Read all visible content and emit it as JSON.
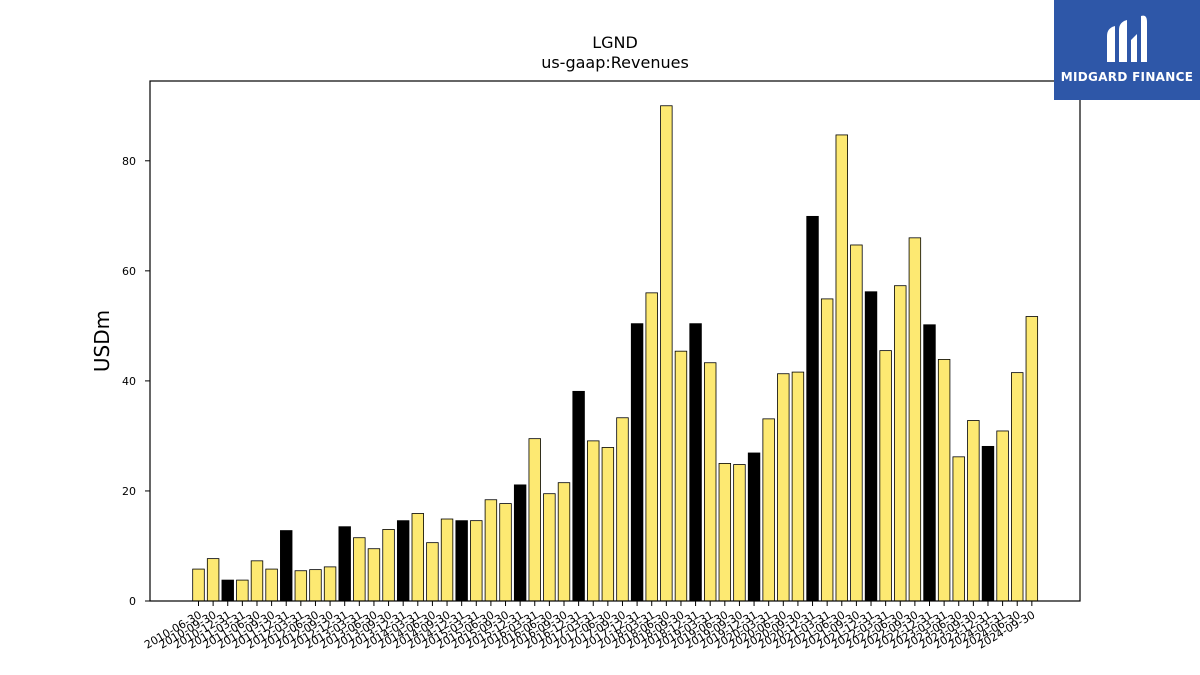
{
  "brand": {
    "name": "MIDGARD FINANCE",
    "color": "#2e57a8"
  },
  "chart_data": {
    "type": "bar",
    "title": "LGND",
    "subtitle": "us-gaap:Revenues",
    "xlabel": "",
    "ylabel": "USDm",
    "ylim": [
      0,
      94.5
    ],
    "yticks": [
      0,
      20,
      40,
      60,
      80
    ],
    "grid": false,
    "colors": {
      "quarter": "#fde972",
      "annual": "#000000",
      "edge": "#000000"
    },
    "categories": [
      "2010-06-30",
      "2010-09-30",
      "2010-12-31",
      "2011-03-31",
      "2011-06-30",
      "2011-09-30",
      "2011-12-31",
      "2012-03-31",
      "2012-06-30",
      "2012-09-30",
      "2012-12-31",
      "2013-03-31",
      "2013-06-30",
      "2013-09-30",
      "2013-12-31",
      "2014-03-31",
      "2014-06-30",
      "2014-09-30",
      "2014-12-31",
      "2015-03-31",
      "2015-06-30",
      "2015-09-30",
      "2015-12-31",
      "2016-03-31",
      "2016-06-30",
      "2016-09-30",
      "2016-12-31",
      "2017-03-31",
      "2017-06-30",
      "2017-09-30",
      "2017-12-31",
      "2018-03-31",
      "2018-06-30",
      "2018-09-30",
      "2018-12-31",
      "2019-03-31",
      "2019-06-30",
      "2019-09-30",
      "2019-12-31",
      "2020-03-31",
      "2020-06-30",
      "2020-09-30",
      "2020-12-31",
      "2021-03-31",
      "2021-06-30",
      "2021-09-30",
      "2021-12-31",
      "2022-03-31",
      "2022-06-30",
      "2022-09-30",
      "2022-12-31",
      "2023-03-31",
      "2023-06-30",
      "2023-09-30",
      "2023-12-31",
      "2024-03-31",
      "2024-06-30",
      "2024-09-30"
    ],
    "values": [
      5.8,
      7.7,
      3.8,
      3.8,
      7.3,
      5.8,
      12.8,
      5.5,
      5.7,
      6.2,
      13.5,
      11.5,
      9.5,
      13.0,
      14.6,
      15.9,
      10.6,
      14.9,
      14.6,
      14.6,
      18.4,
      17.7,
      21.1,
      29.5,
      19.5,
      21.5,
      38.1,
      29.1,
      27.9,
      33.3,
      50.4,
      56.0,
      90.0,
      45.4,
      50.4,
      43.3,
      25.0,
      24.8,
      26.9,
      33.1,
      41.3,
      41.6,
      69.9,
      54.9,
      84.7,
      64.7,
      56.2,
      45.5,
      57.3,
      66.0,
      50.2,
      43.9,
      26.2,
      32.8,
      28.1,
      30.9,
      41.5,
      51.7
    ],
    "annual_flags": [
      false,
      false,
      true,
      false,
      false,
      false,
      true,
      false,
      false,
      false,
      true,
      false,
      false,
      false,
      true,
      false,
      false,
      false,
      true,
      false,
      false,
      false,
      true,
      false,
      false,
      false,
      true,
      false,
      false,
      false,
      true,
      false,
      false,
      false,
      true,
      false,
      false,
      false,
      true,
      false,
      false,
      false,
      true,
      false,
      false,
      false,
      true,
      false,
      false,
      false,
      true,
      false,
      false,
      false,
      true,
      false,
      false,
      false
    ]
  }
}
